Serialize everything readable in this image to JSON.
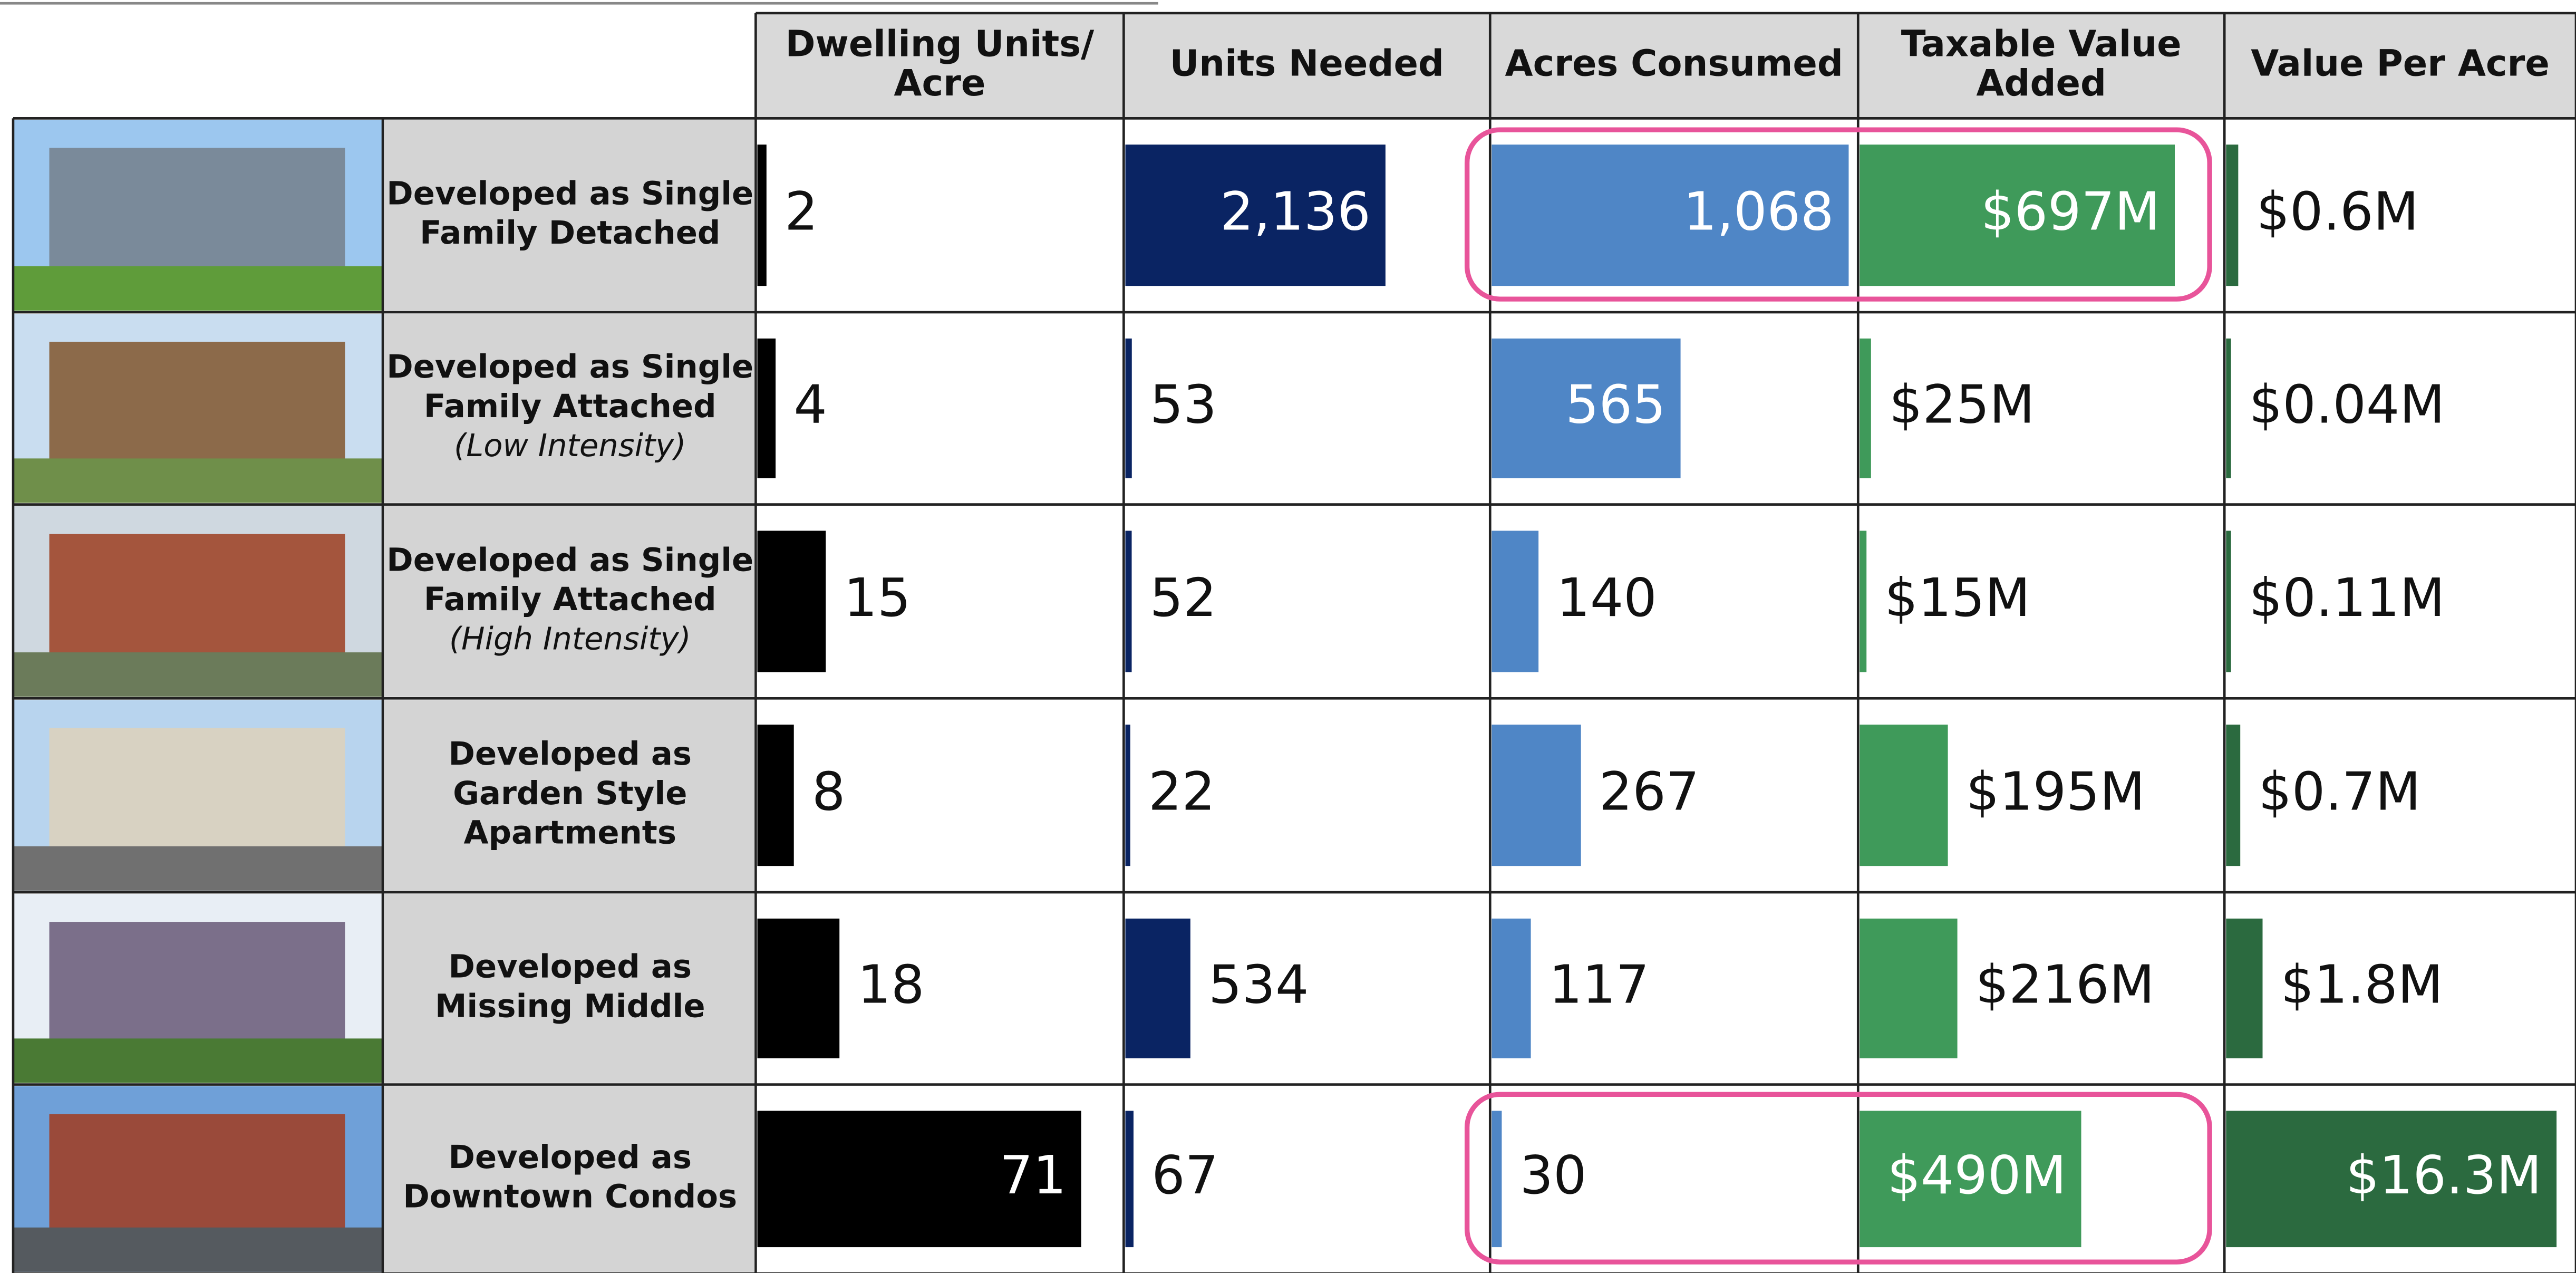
{
  "table": {
    "columns": [
      {
        "header": [
          "Dwelling Units/",
          "Acre"
        ],
        "color": "#000000"
      },
      {
        "header": [
          "Units Needed"
        ],
        "color": "#0a2463"
      },
      {
        "header": [
          "Acres Consumed"
        ],
        "color": "#4f86c6"
      },
      {
        "header": [
          "Taxable Value",
          "Added"
        ],
        "color": "#3f9a5a"
      },
      {
        "header": [
          "Value Per Acre"
        ],
        "color": "#2b6a3f"
      }
    ],
    "rows": [
      {
        "label": [
          "Developed as Single",
          "Family Detached"
        ],
        "cells": [
          2,
          {
            "value": 2136,
            "label": "2,136"
          },
          {
            "value": 1068,
            "label": "1,068"
          },
          {
            "value": 697,
            "label": "$697M"
          },
          {
            "value": 0.6,
            "label": "$0.6M"
          }
        ]
      },
      {
        "label": [
          "Developed as Single",
          "Family Attached"
        ],
        "note": "(Low Intensity)",
        "cells": [
          4,
          53,
          565,
          {
            "value": 25,
            "label": "$25M"
          },
          {
            "value": 0.04,
            "label": "$0.04M"
          }
        ]
      },
      {
        "label": [
          "Developed as Single",
          "Family Attached"
        ],
        "note": "(High Intensity)",
        "cells": [
          15,
          52,
          140,
          {
            "value": 15,
            "label": "$15M"
          },
          {
            "value": 0.11,
            "label": "$0.11M"
          }
        ]
      },
      {
        "label": [
          "Developed as",
          "Garden Style",
          "Apartments"
        ],
        "cells": [
          8,
          22,
          267,
          {
            "value": 195,
            "label": "$195M"
          },
          {
            "value": 0.7,
            "label": "$0.7M"
          }
        ]
      },
      {
        "label": [
          "Developed as",
          "Missing Middle"
        ],
        "cells": [
          18,
          534,
          117,
          {
            "value": 216,
            "label": "$216M"
          },
          {
            "value": 1.8,
            "label": "$1.8M"
          }
        ]
      },
      {
        "label": [
          "Developed as",
          "Downtown Condos"
        ],
        "cells": [
          71,
          67,
          30,
          {
            "value": 490,
            "label": "$490M"
          },
          {
            "value": 16.3,
            "label": "$16.3M"
          }
        ]
      }
    ]
  }
}
